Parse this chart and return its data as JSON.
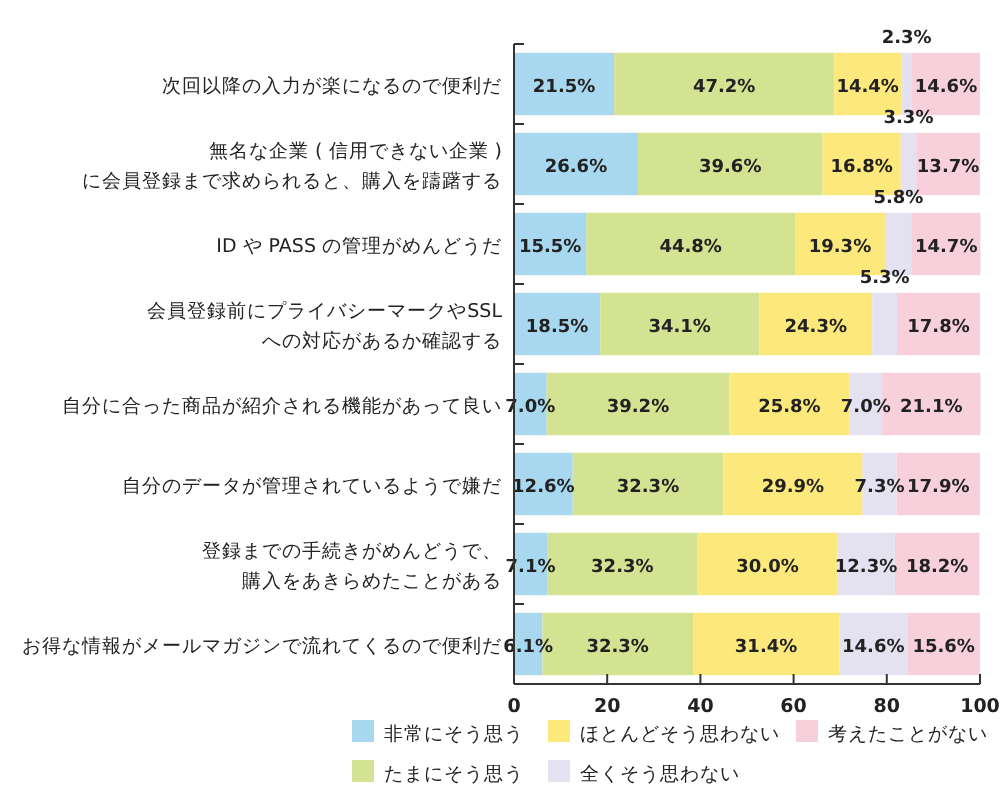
{
  "chart_data": {
    "type": "bar",
    "orientation": "horizontal",
    "stacked": true,
    "data_labels": false,
    "legend": "bottom",
    "grid": false,
    "categories": [
      "次回以降の入力が楽になるので便利だ",
      "無名な企業 ( 信用できない企業 ) に会員登録まで求められると、購入を躊躇する",
      "ID や PASS の管理がめんどうだ",
      "会員登録前にプライバシーマークやSSL への対応があるか確認する",
      "自分に合った商品が紹介される機能があって良い",
      "自分のデータが管理されているようで嫌だ",
      "登録までの手続きがめんどうで、購入をあきらめたことがある",
      "お得な情報がメールマガジンで流れてくるので便利だ"
    ],
    "xlim": [
      0,
      100
    ],
    "xticks": [
      0,
      20,
      40,
      60,
      80,
      100
    ],
    "series": [
      {
        "name": "非常にそう思う",
        "color": "#a8d8f0",
        "values": [
          21.5,
          26.6,
          15.5,
          18.5,
          7.0,
          12.6,
          7.1,
          6.1
        ],
        "value_labels": [
          "21.5%",
          "26.6%",
          "15.5%",
          "18.5%",
          "7.0%",
          "12.6%",
          "7.1%",
          "6.1%"
        ]
      },
      {
        "name": "たまにそう思う",
        "color": "#d3e391",
        "values": [
          47.2,
          39.6,
          44.8,
          34.1,
          39.2,
          32.3,
          32.3,
          32.3
        ],
        "value_labels": [
          "47.2%",
          "39.6%",
          "44.8%",
          "34.1%",
          "39.2%",
          "32.3%",
          "32.3%",
          "32.3%"
        ]
      },
      {
        "name": "ほとんどそう思わない",
        "color": "#fde87c",
        "values": [
          14.4,
          16.8,
          19.3,
          24.3,
          25.8,
          29.9,
          30.0,
          31.4
        ],
        "value_labels": [
          "14.4%",
          "16.8%",
          "19.3%",
          "24.3%",
          "25.8%",
          "29.9%",
          "30.0%",
          "31.4%"
        ]
      },
      {
        "name": "全くそう思わない",
        "color": "#e4e1f0",
        "values": [
          2.3,
          3.3,
          5.8,
          5.3,
          7.0,
          7.3,
          12.3,
          14.6
        ],
        "value_labels": [
          "2.3%",
          "3.3%",
          "5.8%",
          "5.3%",
          "7.0%",
          "7.3%",
          "12.3%",
          "14.6%"
        ]
      },
      {
        "name": "考えたことがない",
        "color": "#f7d0dc",
        "values": [
          14.6,
          13.7,
          14.7,
          17.8,
          21.1,
          17.9,
          18.2,
          15.6
        ],
        "value_labels": [
          "14.6%",
          "13.7%",
          "14.7%",
          "17.8%",
          "21.1%",
          "17.9%",
          "18.2%",
          "15.6%"
        ]
      }
    ]
  }
}
